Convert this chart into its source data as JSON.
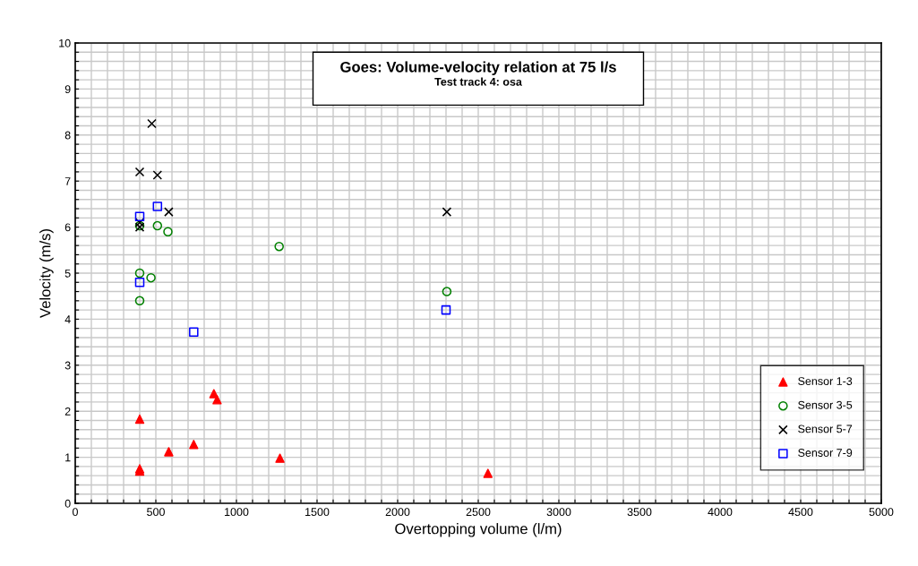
{
  "chart_data": {
    "type": "scatter",
    "title": "Goes: Volume-velocity relation at 75 l/s",
    "subtitle": "Test track 4: osa",
    "xlabel": "Overtopping volume (l/m)",
    "ylabel": "Velocity (m/s)",
    "xlim": [
      0,
      5000
    ],
    "ylim": [
      0,
      10
    ],
    "xticks": [
      0,
      {
        "value": 100,
        "label": null
      },
      {
        "value": 200,
        "label": null
      },
      {
        "value": 300,
        "label": null
      },
      {
        "value": 400,
        "label": null
      },
      500,
      {
        "value": 600,
        "label": null
      },
      {
        "value": 700,
        "label": null
      },
      {
        "value": 800,
        "label": null
      },
      {
        "value": 900,
        "label": null
      },
      1000,
      {
        "value": 1100,
        "label": null
      },
      {
        "value": 1200,
        "label": null
      },
      {
        "value": 1300,
        "label": null
      },
      {
        "value": 1400,
        "label": null
      },
      1500,
      {
        "value": 1600,
        "label": null
      },
      {
        "value": 1700,
        "label": null
      },
      {
        "value": 1800,
        "label": null
      },
      {
        "value": 1900,
        "label": null
      },
      2000,
      {
        "value": 2100,
        "label": null
      },
      {
        "value": 2200,
        "label": null
      },
      {
        "value": 2300,
        "label": null
      },
      {
        "value": 2400,
        "label": null
      },
      2500,
      {
        "value": 2600,
        "label": null
      },
      {
        "value": 2700,
        "label": null
      },
      {
        "value": 2800,
        "label": null
      },
      {
        "value": 2900,
        "label": null
      },
      3000,
      {
        "value": 3100,
        "label": null
      },
      {
        "value": 3200,
        "label": null
      },
      {
        "value": 3300,
        "label": null
      },
      {
        "value": 3400,
        "label": null
      },
      3500,
      {
        "value": 3600,
        "label": null
      },
      {
        "value": 3700,
        "label": null
      },
      {
        "value": 3800,
        "label": null
      },
      {
        "value": 3900,
        "label": null
      },
      4000,
      {
        "value": 4100,
        "label": null
      },
      {
        "value": 4200,
        "label": null
      },
      {
        "value": 4300,
        "label": null
      },
      {
        "value": 4400,
        "label": null
      },
      4500,
      {
        "value": 4600,
        "label": null
      },
      {
        "value": 4700,
        "label": null
      },
      {
        "value": 4800,
        "label": null
      },
      {
        "value": 4900,
        "label": null
      },
      5000
    ],
    "yticks": [
      0,
      {
        "value": 0.2,
        "label": null
      },
      {
        "value": 0.4,
        "label": null
      },
      {
        "value": 0.6,
        "label": null
      },
      {
        "value": 0.8,
        "label": null
      },
      1,
      {
        "value": 1.2,
        "label": null
      },
      {
        "value": 1.4,
        "label": null
      },
      {
        "value": 1.6,
        "label": null
      },
      {
        "value": 1.8,
        "label": null
      },
      2,
      {
        "value": 2.2,
        "label": null
      },
      {
        "value": 2.4,
        "label": null
      },
      {
        "value": 2.6,
        "label": null
      },
      {
        "value": 2.8,
        "label": null
      },
      3,
      {
        "value": 3.2,
        "label": null
      },
      {
        "value": 3.4,
        "label": null
      },
      {
        "value": 3.6,
        "label": null
      },
      {
        "value": 3.8,
        "label": null
      },
      4,
      {
        "value": 4.2,
        "label": null
      },
      {
        "value": 4.4,
        "label": null
      },
      {
        "value": 4.6,
        "label": null
      },
      {
        "value": 4.8,
        "label": null
      },
      5,
      {
        "value": 5.2,
        "label": null
      },
      {
        "value": 5.4,
        "label": null
      },
      {
        "value": 5.6,
        "label": null
      },
      {
        "value": 5.8,
        "label": null
      },
      6,
      {
        "value": 6.2,
        "label": null
      },
      {
        "value": 6.4,
        "label": null
      },
      {
        "value": 6.6,
        "label": null
      },
      {
        "value": 6.8,
        "label": null
      },
      7,
      {
        "value": 7.2,
        "label": null
      },
      {
        "value": 7.4,
        "label": null
      },
      {
        "value": 7.6,
        "label": null
      },
      {
        "value": 7.8,
        "label": null
      },
      8,
      {
        "value": 8.2,
        "label": null
      },
      {
        "value": 8.4,
        "label": null
      },
      {
        "value": 8.6,
        "label": null
      },
      {
        "value": 8.8,
        "label": null
      },
      9,
      {
        "value": 9.2,
        "label": null
      },
      {
        "value": 9.4,
        "label": null
      },
      {
        "value": 9.6,
        "label": null
      },
      {
        "value": 9.8,
        "label": null
      },
      10
    ],
    "grid": true,
    "legend": "bottom right",
    "series": [
      {
        "name": "Sensor 1-3",
        "color": "#ff0000",
        "marker": "triangle",
        "x": [
          400,
          400,
          400,
          580,
          735,
          860,
          880,
          1270,
          2560
        ],
        "values": [
          1.83,
          0.75,
          0.7,
          1.12,
          1.28,
          2.38,
          2.25,
          0.98,
          0.65
        ]
      },
      {
        "name": "Sensor 3-5",
        "color": "#008000",
        "marker": "circle",
        "x": [
          400,
          400,
          400,
          470,
          510,
          575,
          1265,
          2305
        ],
        "values": [
          6.03,
          5.0,
          4.4,
          4.9,
          6.03,
          5.9,
          5.58,
          4.6
        ]
      },
      {
        "name": "Sensor 5-7",
        "color": "#000000",
        "marker": "cross",
        "x": [
          475,
          400,
          510,
          580,
          400,
          400,
          2305
        ],
        "values": [
          8.25,
          7.2,
          7.13,
          6.33,
          6.1,
          6.0,
          6.33
        ]
      },
      {
        "name": "Sensor 7-9",
        "color": "#0000ff",
        "marker": "square",
        "x": [
          400,
          510,
          400,
          735,
          2300
        ],
        "values": [
          6.23,
          6.45,
          4.8,
          3.72,
          4.2
        ]
      }
    ]
  }
}
